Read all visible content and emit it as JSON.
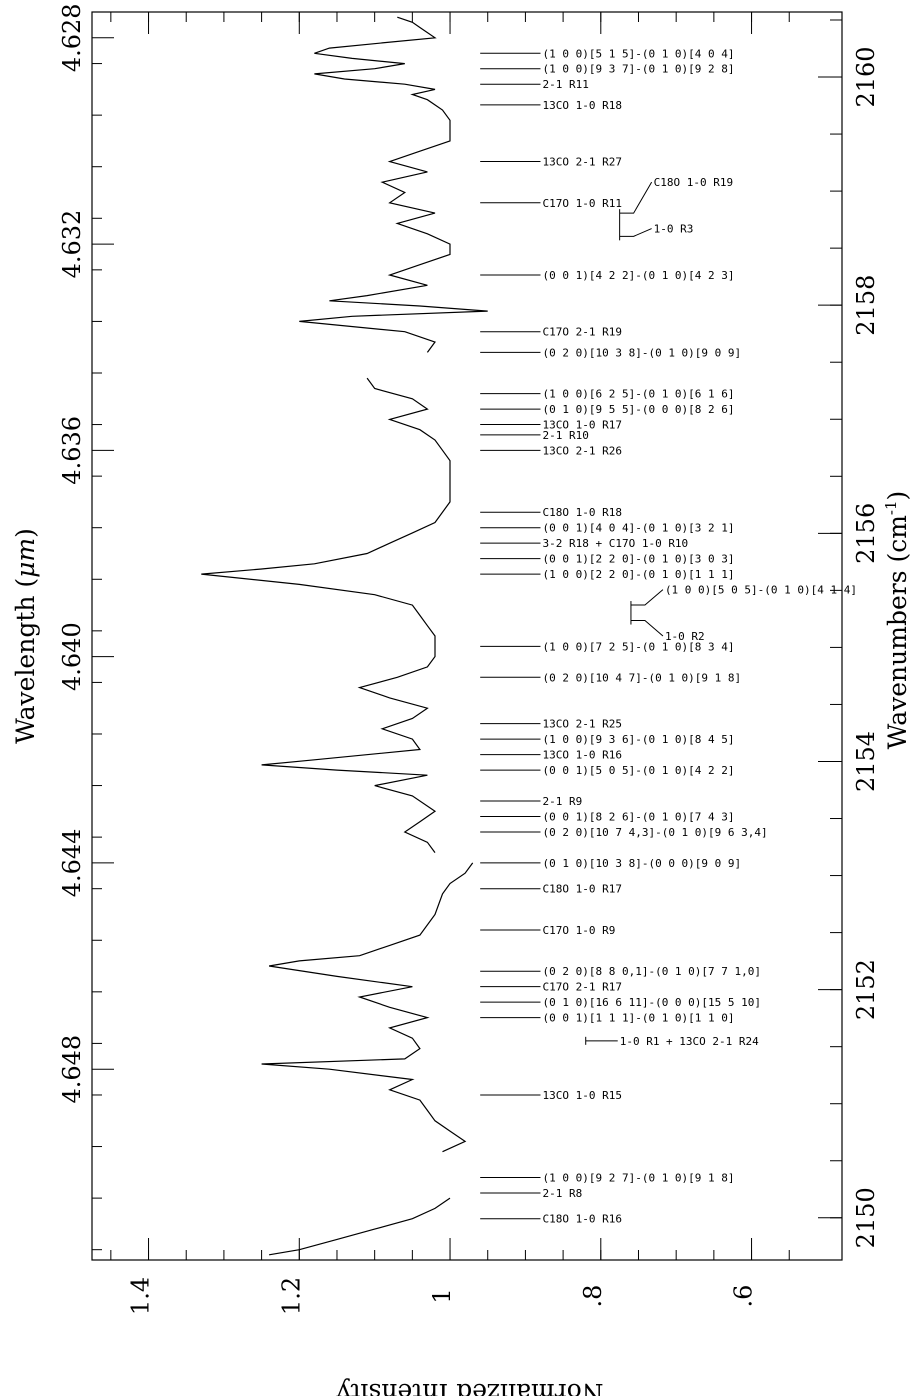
{
  "chart_data": {
    "type": "line",
    "orientation": "rotated-90",
    "left_axis": {
      "label_text": "Wavelength (",
      "label_unit": "μm",
      "label_close": ")",
      "range": [
        4.6275,
        4.6517
      ],
      "ticks": [
        {
          "v": 4.628,
          "t": "4.628"
        },
        {
          "v": 4.632,
          "t": "4.632"
        },
        {
          "v": 4.636,
          "t": "4.636"
        },
        {
          "v": 4.64,
          "t": "4.640"
        },
        {
          "v": 4.644,
          "t": "4.644"
        },
        {
          "v": 4.648,
          "t": "4.648"
        }
      ]
    },
    "right_axis": {
      "label_text": "Wavenumbers (cm",
      "label_sup": "-1",
      "label_close": ")",
      "range": [
        2160.57,
        2149.63
      ],
      "ticks": [
        {
          "v": 2160,
          "t": "2160"
        },
        {
          "v": 2158,
          "t": "2158"
        },
        {
          "v": 2156,
          "t": "2156"
        },
        {
          "v": 2154,
          "t": "2154"
        },
        {
          "v": 2152,
          "t": "2152"
        },
        {
          "v": 2150,
          "t": "2150"
        }
      ]
    },
    "intensity_axis": {
      "label": "Normalized Intensity",
      "range": [
        1.475,
        0.48
      ],
      "ticks": [
        {
          "v": 1.4,
          "t": "1.4"
        },
        {
          "v": 1.2,
          "t": "1.2"
        },
        {
          "v": 1.0,
          "t": "1"
        },
        {
          "v": 0.8,
          "t": ".8"
        },
        {
          "v": 0.6,
          "t": ".6"
        }
      ]
    },
    "spectrum_segments": [
      [
        [
          4.6276,
          1.07
        ],
        [
          4.6277,
          1.05
        ],
        [
          4.6278,
          1.04
        ],
        [
          4.628,
          1.02
        ],
        [
          4.6281,
          1.09
        ],
        [
          4.6282,
          1.16
        ],
        [
          4.6283,
          1.18
        ],
        [
          4.6284,
          1.13
        ],
        [
          4.6285,
          1.06
        ],
        [
          4.6286,
          1.1
        ],
        [
          4.6287,
          1.18
        ],
        [
          4.6288,
          1.14
        ],
        [
          4.6289,
          1.06
        ],
        [
          4.629,
          1.02
        ],
        [
          4.6291,
          1.05
        ],
        [
          4.6292,
          1.03
        ],
        [
          4.6294,
          1.01
        ],
        [
          4.6296,
          1.0
        ],
        [
          4.63,
          1.0
        ],
        [
          4.6302,
          1.04
        ],
        [
          4.6304,
          1.08
        ],
        [
          4.6306,
          1.03
        ],
        [
          4.6308,
          1.09
        ],
        [
          4.631,
          1.06
        ],
        [
          4.6312,
          1.08
        ],
        [
          4.6314,
          1.02
        ],
        [
          4.6316,
          1.07
        ],
        [
          4.6318,
          1.03
        ],
        [
          4.632,
          1.0
        ],
        [
          4.6322,
          1.0
        ],
        [
          4.6324,
          1.04
        ],
        [
          4.6326,
          1.08
        ],
        [
          4.6328,
          1.03
        ],
        [
          4.633,
          1.11
        ],
        [
          4.6331,
          1.16
        ],
        [
          4.6332,
          1.04
        ],
        [
          4.6333,
          0.95
        ],
        [
          4.6334,
          1.13
        ],
        [
          4.6335,
          1.2
        ],
        [
          4.6337,
          1.06
        ],
        [
          4.6339,
          1.02
        ],
        [
          4.6341,
          1.03
        ]
      ],
      [
        [
          4.6346,
          1.11
        ],
        [
          4.6348,
          1.1
        ],
        [
          4.635,
          1.05
        ],
        [
          4.6352,
          1.03
        ],
        [
          4.6354,
          1.08
        ],
        [
          4.6356,
          1.04
        ],
        [
          4.6358,
          1.02
        ],
        [
          4.636,
          1.01
        ],
        [
          4.6362,
          1.0
        ],
        [
          4.6366,
          1.0
        ],
        [
          4.637,
          1.0
        ],
        [
          4.6374,
          1.02
        ],
        [
          4.6376,
          1.05
        ],
        [
          4.6378,
          1.08
        ],
        [
          4.638,
          1.11
        ],
        [
          4.6382,
          1.18
        ],
        [
          4.6383,
          1.25
        ],
        [
          4.6384,
          1.33
        ],
        [
          4.6386,
          1.2
        ],
        [
          4.6388,
          1.1
        ],
        [
          4.639,
          1.05
        ],
        [
          4.6392,
          1.04
        ],
        [
          4.6394,
          1.03
        ],
        [
          4.6396,
          1.02
        ],
        [
          4.64,
          1.02
        ],
        [
          4.6402,
          1.03
        ],
        [
          4.6404,
          1.07
        ],
        [
          4.6406,
          1.12
        ],
        [
          4.6408,
          1.08
        ],
        [
          4.641,
          1.03
        ],
        [
          4.6412,
          1.05
        ],
        [
          4.6414,
          1.09
        ],
        [
          4.6416,
          1.05
        ],
        [
          4.6418,
          1.04
        ],
        [
          4.642,
          1.18
        ],
        [
          4.6421,
          1.25
        ],
        [
          4.6422,
          1.15
        ],
        [
          4.6423,
          1.03
        ],
        [
          4.6425,
          1.1
        ],
        [
          4.6427,
          1.05
        ],
        [
          4.643,
          1.02
        ],
        [
          4.6432,
          1.04
        ],
        [
          4.6434,
          1.06
        ],
        [
          4.6436,
          1.03
        ],
        [
          4.6438,
          1.02
        ]
      ],
      [
        [
          4.644,
          0.97
        ],
        [
          4.6442,
          0.98
        ],
        [
          4.6444,
          1.0
        ],
        [
          4.6446,
          1.01
        ],
        [
          4.645,
          1.02
        ],
        [
          4.6454,
          1.04
        ],
        [
          4.6456,
          1.08
        ],
        [
          4.6458,
          1.12
        ],
        [
          4.6459,
          1.2
        ],
        [
          4.646,
          1.24
        ],
        [
          4.6462,
          1.15
        ],
        [
          4.6464,
          1.05
        ],
        [
          4.6466,
          1.12
        ],
        [
          4.6468,
          1.08
        ],
        [
          4.647,
          1.03
        ],
        [
          4.6472,
          1.08
        ],
        [
          4.6474,
          1.05
        ],
        [
          4.6476,
          1.04
        ],
        [
          4.6478,
          1.06
        ],
        [
          4.6479,
          1.25
        ],
        [
          4.648,
          1.16
        ],
        [
          4.6482,
          1.05
        ],
        [
          4.6484,
          1.08
        ],
        [
          4.6486,
          1.04
        ],
        [
          4.6488,
          1.03
        ],
        [
          4.649,
          1.02
        ],
        [
          4.6492,
          1.0
        ],
        [
          4.6494,
          0.98
        ],
        [
          4.6496,
          1.01
        ]
      ],
      [
        [
          4.6505,
          1.0
        ],
        [
          4.6507,
          1.02
        ],
        [
          4.6509,
          1.05
        ],
        [
          4.6511,
          1.1
        ],
        [
          4.6513,
          1.15
        ],
        [
          4.6515,
          1.2
        ],
        [
          4.6516,
          1.24
        ]
      ]
    ],
    "label_line_intensity": [
      0.96,
      0.88
    ],
    "line_labels": [
      {
        "x": 4.6283,
        "y": 4.6283,
        "text": "(1 0 0)[5 1 5]-(0 1 0)[4 0 4]"
      },
      {
        "x": 4.6286,
        "y": 4.6286,
        "text": "(1 0 0)[9 3 7]-(0 1 0)[9 2 8]"
      },
      {
        "x": 4.6289,
        "y": 4.6289,
        "text": "2-1 R11"
      },
      {
        "x": 4.6293,
        "y": 4.6293,
        "text": "13CO 1-0 R18"
      },
      {
        "x": 4.6304,
        "y": 4.6304,
        "text": "13CO 2-1 R27"
      },
      {
        "x": 4.6312,
        "y": 4.6312,
        "text": "C17O 1-0 R11"
      },
      {
        "x": 4.6326,
        "y": 4.6326,
        "text": "(0 0 1)[4 2 2]-(0 1 0)[4 2 3]"
      },
      {
        "x": 4.6337,
        "y": 4.6337,
        "text": "C17O 2-1 R19"
      },
      {
        "x": 4.6341,
        "y": 4.6341,
        "text": "(0 2 0)[10 3 8]-(0 1 0)[9 0 9]"
      },
      {
        "x": 4.6349,
        "y": 4.6349,
        "text": "(1 0 0)[6 2 5]-(0 1 0)[6 1 6]"
      },
      {
        "x": 4.6352,
        "y": 4.6352,
        "text": "(0 1 0)[9 5 5]-(0 0 0)[8 2 6]"
      },
      {
        "x": 4.6355,
        "y": 4.6355,
        "text": "13CO 1-0 R17"
      },
      {
        "x": 4.6357,
        "y": 4.6357,
        "text": "2-1 R10"
      },
      {
        "x": 4.636,
        "y": 4.636,
        "text": "13CO 2-1 R26"
      },
      {
        "x": 4.6372,
        "y": 4.6372,
        "text": "C18O 1-0 R18"
      },
      {
        "x": 4.6375,
        "y": 4.6375,
        "text": "(0 0 1)[4 0 4]-(0 1 0)[3 2 1]"
      },
      {
        "x": 4.6378,
        "y": 4.6378,
        "text": "3-2 R18 + C17O 1-0 R10"
      },
      {
        "x": 4.6381,
        "y": 4.6381,
        "text": "(0 0 1)[2 2 0]-(0 1 0)[3 0 3]"
      },
      {
        "x": 4.6384,
        "y": 4.6384,
        "text": "(1 0 0)[2 2 0]-(0 1 0)[1 1 1]"
      },
      {
        "x": 4.6398,
        "y": 4.6398,
        "text": "(1 0 0)[7 2 5]-(0 1 0)[8 3 4]"
      },
      {
        "x": 4.6404,
        "y": 4.6404,
        "text": "(0 2 0)[10 4 7]-(0 1 0)[9 1 8]"
      },
      {
        "x": 4.6413,
        "y": 4.6413,
        "text": "13CO 2-1 R25"
      },
      {
        "x": 4.6416,
        "y": 4.6416,
        "text": "(1 0 0)[9 3 6]-(0 1 0)[8 4 5]"
      },
      {
        "x": 4.6419,
        "y": 4.6419,
        "text": "13CO 1-0 R16"
      },
      {
        "x": 4.6422,
        "y": 4.6422,
        "text": "(0 0 1)[5 0 5]-(0 1 0)[4 2 2]"
      },
      {
        "x": 4.6428,
        "y": 4.6428,
        "text": "2-1 R9"
      },
      {
        "x": 4.6431,
        "y": 4.6431,
        "text": "(0 0 1)[8 2 6]-(0 1 0)[7 4 3]"
      },
      {
        "x": 4.6434,
        "y": 4.6434,
        "text": "(0 2 0)[10 7 4,3]-(0 1 0)[9 6 3,4]"
      },
      {
        "x": 4.644,
        "y": 4.644,
        "text": "(0 1 0)[10 3 8]-(0 0 0)[9 0 9]"
      },
      {
        "x": 4.6445,
        "y": 4.6445,
        "text": "C18O 1-0 R17"
      },
      {
        "x": 4.6453,
        "y": 4.6453,
        "text": "C17O 1-0 R9"
      },
      {
        "x": 4.6461,
        "y": 4.6461,
        "text": "(0 2 0)[8 8 0,1]-(0 1 0)[7 7 1,0]"
      },
      {
        "x": 4.6464,
        "y": 4.6464,
        "text": "C17O 2-1 R17"
      },
      {
        "x": 4.6467,
        "y": 4.6467,
        "text": "(0 1 0)[16 6 11]-(0 0 0)[15 5 10]"
      },
      {
        "x": 4.647,
        "y": 4.647,
        "text": "(0 0 1)[1 1 1]-(0 1 0)[1 1 0]"
      },
      {
        "x": 4.6485,
        "y": 4.6485,
        "text": "13CO 1-0 R15"
      },
      {
        "x": 4.6501,
        "y": 4.6501,
        "text": "(1 0 0)[9 2 7]-(0 1 0)[9 1 8]"
      },
      {
        "x": 4.6504,
        "y": 4.6504,
        "text": "2-1 R8"
      },
      {
        "x": 4.6509,
        "y": 4.6509,
        "text": "C18O 1-0 R16"
      }
    ],
    "bracket_labels": [
      {
        "x_list": [
          4.6314,
          4.63185
        ],
        "intensity": 0.775,
        "labels": [
          "C18O 1-0 R19",
          "1-0 R3"
        ],
        "label_y": [
          4.6308,
          4.6317
        ]
      },
      {
        "x_list": [
          4.639,
          4.6393
        ],
        "intensity": 0.76,
        "labels": [
          "(1 0 0)[5 0 5]-(0 1 0)[4 1 4]",
          "1-0 R2"
        ],
        "label_y": [
          4.6387,
          4.6396
        ]
      },
      {
        "x_list": [
          4.64745
        ],
        "intensity": 0.82,
        "labels": [
          "1-0 R1 + 13CO 2-1 R24"
        ],
        "label_y": [
          4.64745
        ]
      }
    ]
  }
}
